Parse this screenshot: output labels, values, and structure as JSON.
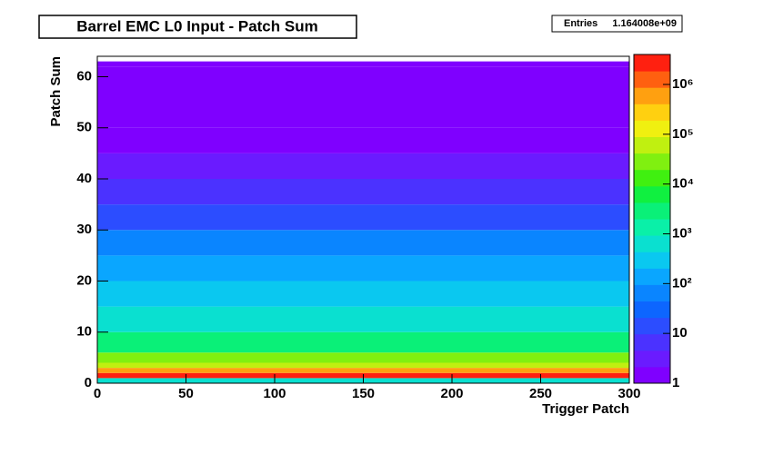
{
  "chart_data": {
    "type": "heatmap",
    "title": "Barrel EMC L0 Input - Patch Sum",
    "stats_label": "Entries",
    "stats_value": "1.164008e+09",
    "x_label": "Trigger Patch",
    "y_label": "Patch Sum",
    "xlim": [
      0,
      300
    ],
    "xticks": [
      0,
      50,
      100,
      150,
      200,
      250,
      300
    ],
    "ylim": [
      0,
      64
    ],
    "yticks": [
      0,
      10,
      20,
      30,
      40,
      50,
      60
    ],
    "ybins": [
      0,
      1,
      2,
      3,
      4,
      6,
      10,
      15,
      20,
      25,
      30,
      35,
      40,
      45,
      50,
      62,
      63
    ],
    "values": [
      800,
      2000000,
      500000,
      80000,
      20000,
      3000,
      800,
      300,
      120,
      50,
      20,
      8,
      3,
      2,
      1.5,
      2
    ],
    "zlim": [
      1,
      4000000
    ],
    "zlog": true,
    "zticks": [
      1,
      10,
      {
        "value": 100,
        "label": "10²"
      },
      {
        "value": 1000,
        "label": "10³"
      },
      {
        "value": 10000,
        "label": "10⁴"
      },
      {
        "value": 100000,
        "label": "10⁵"
      },
      {
        "value": 1000000,
        "label": "10⁶"
      }
    ],
    "palette": [
      "#7f00ff",
      "#6a1bff",
      "#4b32ff",
      "#2c4dff",
      "#0d66ff",
      "#0a85ff",
      "#0aa6ff",
      "#0ac8f0",
      "#0ae0d0",
      "#0af0a8",
      "#0af078",
      "#10f040",
      "#40f010",
      "#80f010",
      "#c0f010",
      "#f0f010",
      "#ffd010",
      "#ffa010",
      "#ff6010",
      "#ff2010"
    ]
  }
}
